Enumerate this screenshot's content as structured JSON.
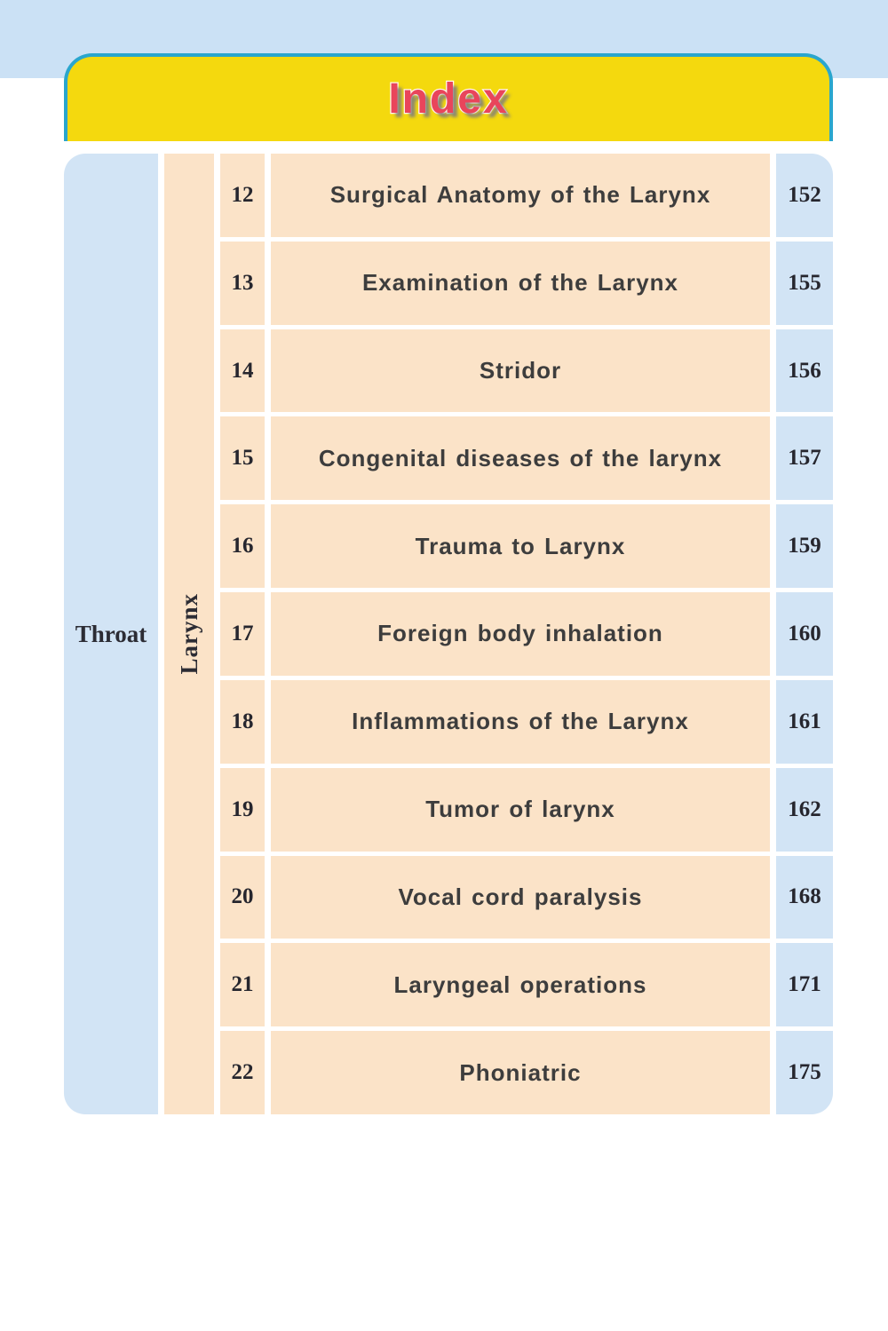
{
  "page": {
    "title": "Index"
  },
  "colors": {
    "top_band": "#cbe1f5",
    "banner_yellow": "#f4d90e",
    "banner_border_teal": "#2aa6cd",
    "banner_title_red": "#e9455b",
    "blue_cell": "#d2e4f5",
    "peach_cell": "#fbe3c8",
    "title_text": "#3d3d3d",
    "number_text": "#26262e"
  },
  "index_table": {
    "section": "Throat",
    "subsection": "Larynx",
    "rows": [
      {
        "num": "12",
        "title": "Surgical Anatomy of the Larynx",
        "page": "152"
      },
      {
        "num": "13",
        "title": "Examination of the Larynx",
        "page": "155"
      },
      {
        "num": "14",
        "title": "Stridor",
        "page": "156"
      },
      {
        "num": "15",
        "title": "Congenital diseases of the larynx",
        "page": "157"
      },
      {
        "num": "16",
        "title": "Trauma to Larynx",
        "page": "159"
      },
      {
        "num": "17",
        "title": "Foreign body inhalation",
        "page": "160"
      },
      {
        "num": "18",
        "title": "Inflammations of the Larynx",
        "page": "161"
      },
      {
        "num": "19",
        "title": "Tumor of larynx",
        "page": "162"
      },
      {
        "num": "20",
        "title": "Vocal cord paralysis",
        "page": "168"
      },
      {
        "num": "21",
        "title": "Laryngeal operations",
        "page": "171"
      },
      {
        "num": "22",
        "title": "Phoniatric",
        "page": "175"
      }
    ]
  }
}
